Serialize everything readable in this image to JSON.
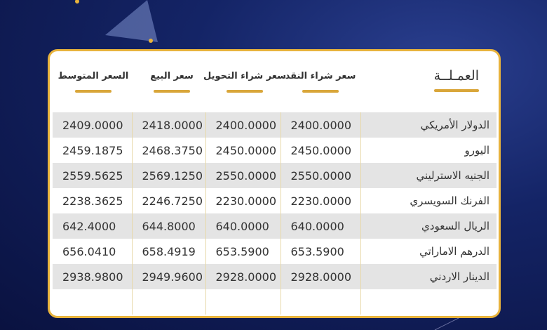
{
  "headers": {
    "currency": "العمـلــة",
    "cash_buy": "سعر شراء النقد",
    "transfer_buy": "سعر شراء التحويل",
    "sell": "سعر البيع",
    "average": "السعر المتوسط"
  },
  "rows": [
    {
      "currency": "الدولار الأمريكي",
      "cash_buy": "2400.0000",
      "transfer_buy": "2400.0000",
      "sell": "2418.0000",
      "average": "2409.0000"
    },
    {
      "currency": "اليورو",
      "cash_buy": "2450.0000",
      "transfer_buy": "2450.0000",
      "sell": "2468.3750",
      "average": "2459.1875"
    },
    {
      "currency": "الجنيه الاسترليني",
      "cash_buy": "2550.0000",
      "transfer_buy": "2550.0000",
      "sell": "2569.1250",
      "average": "2559.5625"
    },
    {
      "currency": "الفرنك السويسري",
      "cash_buy": "2230.0000",
      "transfer_buy": "2230.0000",
      "sell": "2246.7250",
      "average": "2238.3625"
    },
    {
      "currency": "الريال السعودي",
      "cash_buy": "640.0000",
      "transfer_buy": "640.0000",
      "sell": "644.8000",
      "average": "642.4000"
    },
    {
      "currency": "الدرهم الاماراتي",
      "cash_buy": "653.5900",
      "transfer_buy": "653.5900",
      "sell": "658.4919",
      "average": "656.0410"
    },
    {
      "currency": "الدينار الاردني",
      "cash_buy": "2928.0000",
      "transfer_buy": "2928.0000",
      "sell": "2949.9600",
      "average": "2938.9800"
    }
  ],
  "colors": {
    "accent": "#e8b33c",
    "background": "#142466"
  }
}
